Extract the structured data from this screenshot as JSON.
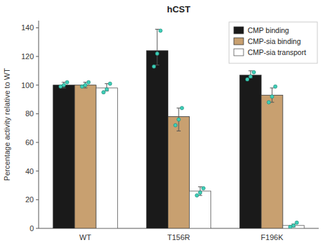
{
  "chart_data": {
    "type": "bar",
    "title": "hCST",
    "ylabel": "Percentage activity relative to WT",
    "categories": [
      "WT",
      "T156R",
      "F196K"
    ],
    "series": [
      {
        "name": "CMP binding",
        "color": "#1a1a1a",
        "values": [
          100,
          124,
          107
        ],
        "error_low": [
          2,
          10,
          2
        ],
        "error_high": [
          2,
          15,
          3
        ],
        "points": [
          [
            99,
            100,
            102
          ],
          [
            113,
            122,
            138
          ],
          [
            104,
            106,
            109
          ]
        ]
      },
      {
        "name": "CMP-sia binding",
        "color": "#c8a070",
        "values": [
          100,
          78,
          93
        ],
        "error_low": [
          2,
          10,
          5
        ],
        "error_high": [
          2,
          6,
          5
        ],
        "points": [
          [
            99,
            100,
            102
          ],
          [
            72,
            76,
            84
          ],
          [
            88,
            92,
            99
          ]
        ]
      },
      {
        "name": "CMP-sia transport",
        "color": "#ffffff",
        "values": [
          98,
          26,
          2
        ],
        "error_low": [
          2,
          3,
          1
        ],
        "error_high": [
          3,
          3,
          1
        ],
        "points": [
          [
            95,
            97,
            101
          ],
          [
            23,
            25,
            28
          ],
          [
            1,
            2,
            4
          ]
        ]
      }
    ],
    "point_color": "#3ecfb8",
    "ylim": [
      0,
      145
    ],
    "yticks": [
      0,
      20,
      40,
      60,
      80,
      100,
      120,
      140
    ],
    "legend": "upper right",
    "grid": false
  }
}
